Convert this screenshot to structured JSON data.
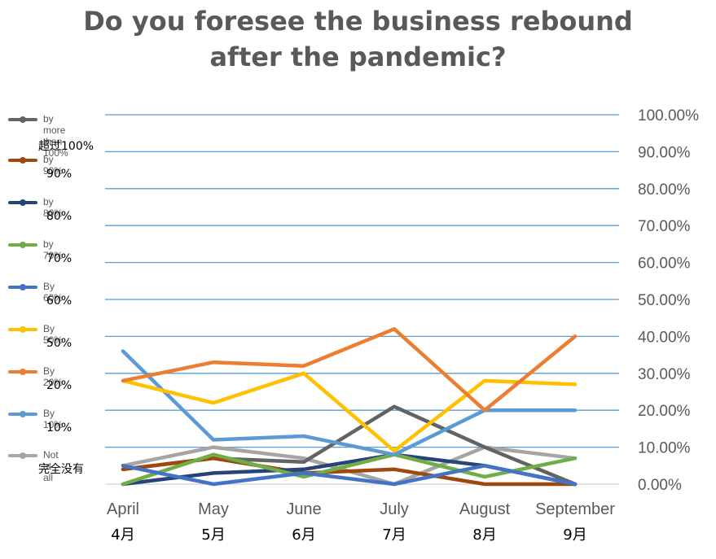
{
  "chart_data": {
    "type": "line",
    "title": [
      "Do you foresee the business rebound",
      "after the pandemic?"
    ],
    "categories": [
      "April",
      "May",
      "June",
      "July",
      "August",
      "September"
    ],
    "categories_cn": [
      "4月",
      "5月",
      "6月",
      "7月",
      "8月",
      "9月"
    ],
    "ylim": [
      0,
      100
    ],
    "yticks": [
      "0.00%",
      "10.00%",
      "20.00%",
      "30.00%",
      "40.00%",
      "50.00%",
      "60.00%",
      "70.00%",
      "80.00%",
      "90.00%",
      "100.00%"
    ],
    "y_axis_side": "right",
    "grid": true,
    "legend_position": "left",
    "series": [
      {
        "name": "by more than 100%",
        "name_en": "by more\nthan 100%",
        "name_cn": "超过100%",
        "color": "#636363",
        "values": [
          4,
          7,
          6,
          21,
          10,
          0
        ]
      },
      {
        "name": "by 90%",
        "name_en": "by 90%",
        "name_cn": "90%",
        "color": "#9e480e",
        "values": [
          4,
          7,
          3,
          4,
          0,
          0
        ]
      },
      {
        "name": "by 80%",
        "name_en": "by 80%",
        "name_cn": "80%",
        "color": "#264478",
        "values": [
          0,
          3,
          4,
          8,
          5,
          0
        ]
      },
      {
        "name": "by 70%",
        "name_en": "by 70%",
        "name_cn": "70%",
        "color": "#70ad47",
        "values": [
          0,
          8,
          2,
          8,
          2,
          7
        ]
      },
      {
        "name": "By 60%",
        "name_en": "By 60%",
        "name_cn": "60%",
        "color": "#4472c4",
        "values": [
          5,
          0,
          3,
          0,
          5,
          0
        ]
      },
      {
        "name": "By 50%",
        "name_en": "By 50%",
        "name_cn": "50%",
        "color": "#ffc000",
        "values": [
          28,
          22,
          30,
          9,
          28,
          27
        ]
      },
      {
        "name": "By 20%",
        "name_en": "By 20%",
        "name_cn": "20%",
        "color": "#ed7d31",
        "values": [
          28,
          33,
          32,
          42,
          20,
          40
        ]
      },
      {
        "name": "By 10%",
        "name_en": "By 10%",
        "name_cn": "10%",
        "color": "#5b9bd5",
        "values": [
          36,
          12,
          13,
          8,
          20,
          20
        ]
      },
      {
        "name": "Not at all",
        "name_en": "Not at all",
        "name_cn": "完全没有",
        "color": "#a5a5a5",
        "values": [
          5,
          10,
          7,
          0,
          10,
          7
        ]
      }
    ]
  }
}
